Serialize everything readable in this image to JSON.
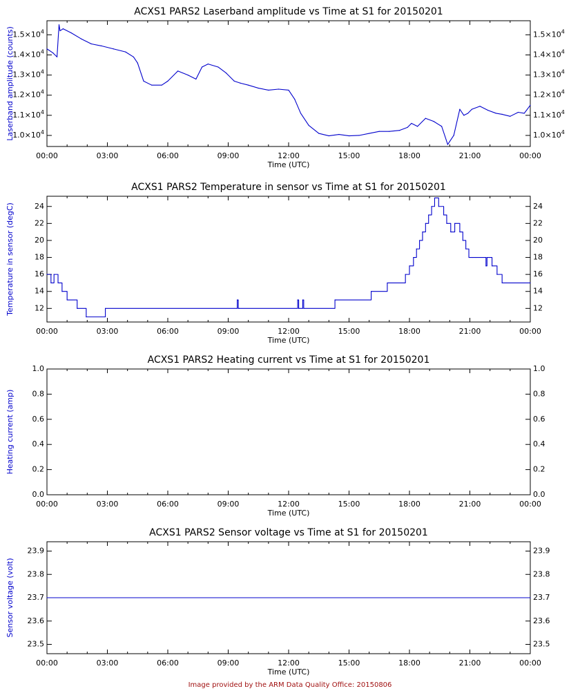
{
  "figure": {
    "credit": "Image provided by the ARM Data Quality Office: 20150806",
    "colors": {
      "axes": "#000000",
      "text": "#000000",
      "series": "#0000cc",
      "ylabel": "#0000cc",
      "credit": "#a01010"
    }
  },
  "chart_data": [
    {
      "type": "line",
      "title": "ACXS1 PARS2 Laserband amplitude vs Time at S1 for 20150201",
      "xlabel": "Time (UTC)",
      "ylabel": "Laserband amplitude (counts)",
      "xlim": [
        0,
        24
      ],
      "ylim": [
        9450,
        15700
      ],
      "x_ticks": [
        "00:00",
        "03:00",
        "06:00",
        "09:00",
        "12:00",
        "15:00",
        "18:00",
        "21:00",
        "00:00"
      ],
      "y_ticks": [
        10000,
        11000,
        12000,
        13000,
        14000,
        15000
      ],
      "y_tick_labels": [
        {
          "mantissa": "1.0",
          "base": "10",
          "exp": "4"
        },
        {
          "mantissa": "1.1",
          "base": "10",
          "exp": "4"
        },
        {
          "mantissa": "1.2",
          "base": "10",
          "exp": "4"
        },
        {
          "mantissa": "1.3",
          "base": "10",
          "exp": "4"
        },
        {
          "mantissa": "1.4",
          "base": "10",
          "exp": "4"
        },
        {
          "mantissa": "1.5",
          "base": "10",
          "exp": "4"
        }
      ],
      "series": [
        {
          "name": "Laserband amplitude",
          "x": [
            0,
            0.3,
            0.5,
            0.6,
            0.65,
            0.8,
            1.2,
            1.7,
            2.2,
            2.7,
            3.3,
            3.9,
            4.3,
            4.5,
            4.8,
            5.2,
            5.7,
            6.0,
            6.5,
            7.0,
            7.4,
            7.7,
            8.0,
            8.5,
            8.9,
            9.3,
            9.6,
            10.0,
            10.5,
            11.0,
            11.5,
            12.0,
            12.3,
            12.6,
            13.0,
            13.5,
            14.0,
            14.5,
            15.0,
            15.5,
            16.0,
            16.5,
            17.0,
            17.5,
            17.9,
            18.1,
            18.4,
            18.8,
            19.2,
            19.6,
            19.9,
            20.2,
            20.5,
            20.7,
            20.9,
            21.1,
            21.5,
            21.9,
            22.3,
            22.6,
            23.0,
            23.4,
            23.7,
            24.0
          ],
          "y": [
            14300,
            14100,
            13900,
            15500,
            15200,
            15300,
            15100,
            14800,
            14550,
            14450,
            14300,
            14150,
            13900,
            13600,
            12700,
            12500,
            12500,
            12700,
            13200,
            13000,
            12800,
            13400,
            13550,
            13400,
            13100,
            12700,
            12600,
            12500,
            12350,
            12250,
            12300,
            12250,
            11800,
            11100,
            10500,
            10100,
            9980,
            10050,
            9980,
            10000,
            10100,
            10200,
            10200,
            10250,
            10400,
            10600,
            10450,
            10850,
            10700,
            10450,
            9550,
            10000,
            11300,
            11000,
            11100,
            11300,
            11450,
            11250,
            11100,
            11050,
            10950,
            11150,
            11100,
            11500
          ]
        }
      ]
    },
    {
      "type": "line",
      "title": "ACXS1 PARS2 Temperature in sensor vs Time at S1 for 20150201",
      "xlabel": "Time (UTC)",
      "ylabel": "Temperature in sensor (degC)",
      "xlim": [
        0,
        24
      ],
      "ylim": [
        10.4,
        25.2
      ],
      "x_ticks": [
        "00:00",
        "03:00",
        "06:00",
        "09:00",
        "12:00",
        "15:00",
        "18:00",
        "21:00",
        "00:00"
      ],
      "y_ticks": [
        12,
        14,
        16,
        18,
        20,
        22,
        24
      ],
      "series": [
        {
          "name": "Temperature in sensor",
          "step": true,
          "x": [
            0,
            0.2,
            0.35,
            0.55,
            0.75,
            1.0,
            1.5,
            1.95,
            2.9,
            9.45,
            9.5,
            9.55,
            12.45,
            12.5,
            12.7,
            12.75,
            14.3,
            14.35,
            16.1,
            16.9,
            17.8,
            18.0,
            18.2,
            18.35,
            18.5,
            18.65,
            18.8,
            18.95,
            19.1,
            19.25,
            19.45,
            19.7,
            19.85,
            20.05,
            20.25,
            20.5,
            20.65,
            20.8,
            20.95,
            21.15,
            21.3,
            21.8,
            21.85,
            22.1,
            22.35,
            22.6,
            22.8,
            24.0
          ],
          "y": [
            16,
            15,
            16,
            15,
            14,
            13,
            12,
            11,
            12,
            13,
            12,
            12,
            13,
            12,
            13,
            12,
            13,
            13,
            14,
            15,
            16,
            17,
            18,
            19,
            20,
            21,
            22,
            23,
            24,
            25,
            24,
            23,
            22,
            21,
            22,
            21,
            20,
            19,
            18,
            18,
            18,
            17,
            18,
            17,
            16,
            15,
            15,
            15
          ]
        }
      ]
    },
    {
      "type": "line",
      "title": "ACXS1 PARS2 Heating current vs Time at S1 for 20150201",
      "xlabel": "Time (UTC)",
      "ylabel": "Heating current (amp)",
      "xlim": [
        0,
        24
      ],
      "ylim": [
        0,
        1
      ],
      "x_ticks": [
        "00:00",
        "03:00",
        "06:00",
        "09:00",
        "12:00",
        "15:00",
        "18:00",
        "21:00",
        "00:00"
      ],
      "y_ticks": [
        0.0,
        0.2,
        0.4,
        0.6,
        0.8,
        1.0
      ],
      "y_tick_labels": [
        "0.0",
        "0.2",
        "0.4",
        "0.6",
        "0.8",
        "1.0"
      ],
      "series": [
        {
          "name": "Heating current",
          "x": [],
          "y": []
        }
      ]
    },
    {
      "type": "line",
      "title": "ACXS1 PARS2 Sensor voltage vs Time at S1 for 20150201",
      "xlabel": "Time (UTC)",
      "ylabel": "Sensor voltage (volt)",
      "xlim": [
        0,
        24
      ],
      "ylim": [
        23.46,
        23.94
      ],
      "x_ticks": [
        "00:00",
        "03:00",
        "06:00",
        "09:00",
        "12:00",
        "15:00",
        "18:00",
        "21:00",
        "00:00"
      ],
      "y_ticks": [
        23.5,
        23.6,
        23.7,
        23.8,
        23.9
      ],
      "y_tick_labels": [
        "23.5",
        "23.6",
        "23.7",
        "23.8",
        "23.9"
      ],
      "series": [
        {
          "name": "Sensor voltage",
          "x": [
            0,
            24
          ],
          "y": [
            23.7,
            23.7
          ]
        }
      ]
    }
  ]
}
